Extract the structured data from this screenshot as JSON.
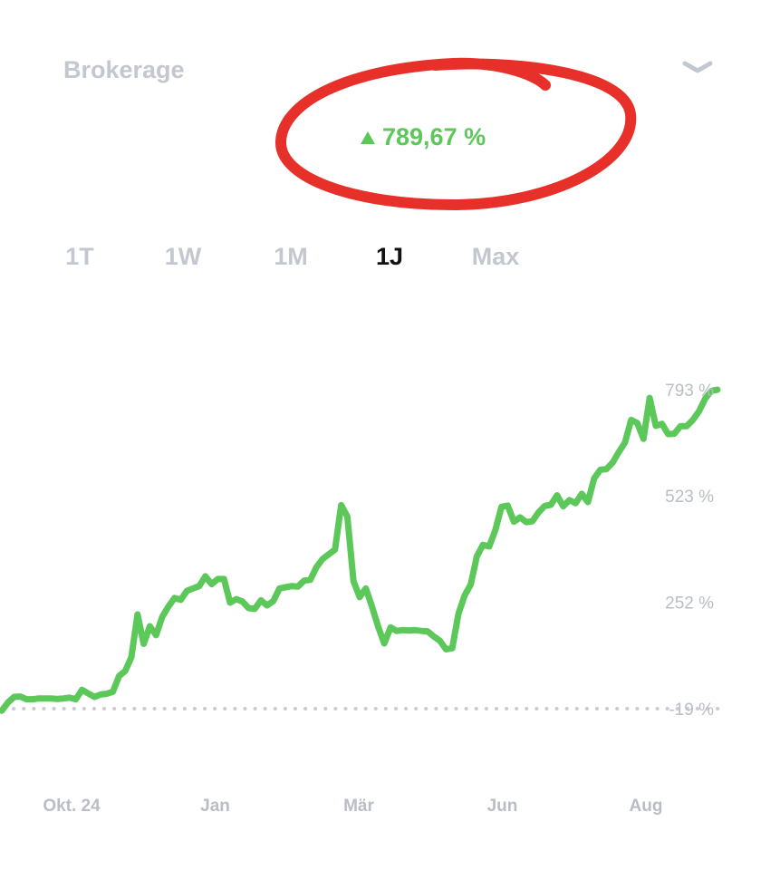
{
  "header": {
    "title": "Brokerage"
  },
  "icons": {
    "collapse": "chevron-down-icon",
    "trend": "triangle-up-icon"
  },
  "performance": {
    "value": "789,67 %",
    "color": "#5cc85a"
  },
  "annotation_color": "#e8302a",
  "tabs": [
    {
      "label": "1T"
    },
    {
      "label": "1W"
    },
    {
      "label": "1M"
    },
    {
      "label": "1J",
      "active": true
    },
    {
      "label": "Max"
    }
  ],
  "chart_data": {
    "type": "line",
    "title": "",
    "xlabel": "",
    "ylabel": "",
    "y_ticks": [
      "793 %",
      "523 %",
      "252 %",
      "-19 %"
    ],
    "y_tick_values": [
      793,
      523,
      252,
      -19
    ],
    "x_ticks": [
      "Okt. 24",
      "Jan",
      "Mär",
      "Jun",
      "Aug"
    ],
    "ylim": [
      -19,
      793
    ],
    "baseline": -19,
    "grid": false,
    "series": [
      {
        "color": "#5cc85a",
        "values": [
          -24,
          -3,
          11,
          12,
          5,
          5,
          7,
          7,
          7,
          6,
          7,
          9,
          5,
          29,
          20,
          11,
          17,
          19,
          24,
          64,
          77,
          112,
          221,
          146,
          191,
          168,
          215,
          241,
          263,
          258,
          281,
          287,
          293,
          318,
          298,
          311,
          311,
          251,
          260,
          254,
          237,
          235,
          257,
          244,
          255,
          287,
          290,
          293,
          292,
          307,
          309,
          341,
          362,
          374,
          386,
          499,
          470,
          306,
          265,
          287,
          241,
          190,
          147,
          188,
          179,
          181,
          180,
          181,
          179,
          178,
          165,
          154,
          132,
          135,
          222,
          269,
          297,
          369,
          398,
          394,
          436,
          495,
          498,
          457,
          468,
          456,
          458,
          481,
          497,
          500,
          524,
          496,
          512,
          504,
          528,
          507,
          567,
          589,
          591,
          607,
          634,
          658,
          716,
          708,
          668,
          772,
          701,
          706,
          680,
          681,
          700,
          700,
          716,
          738,
          770,
          790,
          793
        ]
      }
    ]
  }
}
